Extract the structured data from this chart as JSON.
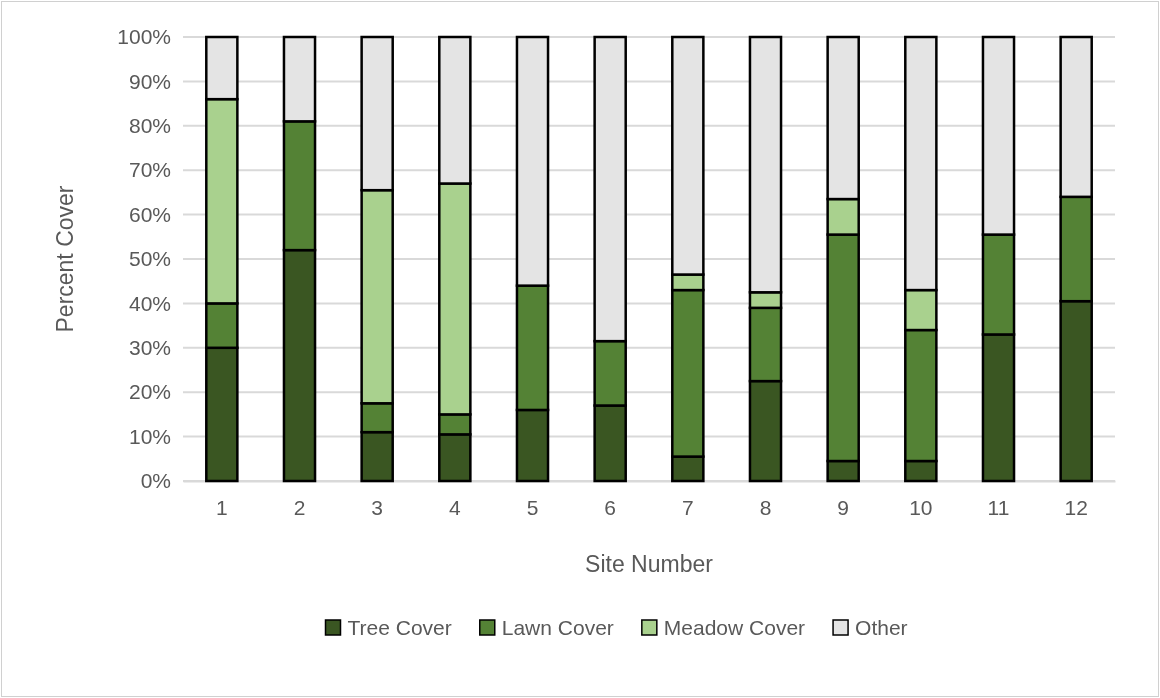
{
  "chart_data": {
    "type": "bar",
    "stacked": true,
    "xlabel": "Site Number",
    "ylabel": "Percent Cover",
    "categories": [
      "1",
      "2",
      "3",
      "4",
      "5",
      "6",
      "7",
      "8",
      "9",
      "10",
      "11",
      "12"
    ],
    "series": [
      {
        "name": "Tree Cover",
        "color": "#3a5622",
        "values": [
          30,
          52,
          11,
          10.5,
          16,
          17,
          5.5,
          22.5,
          4.5,
          4.5,
          33,
          40.5
        ]
      },
      {
        "name": "Lawn Cover",
        "color": "#548235",
        "values": [
          10,
          29,
          6.5,
          4.5,
          28,
          14.5,
          37.5,
          16.5,
          51,
          29.5,
          22.5,
          23.5
        ]
      },
      {
        "name": "Meadow Cover",
        "color": "#a9d18e",
        "values": [
          46,
          null,
          48,
          52,
          null,
          null,
          3.5,
          3.5,
          8,
          9,
          null,
          null
        ]
      },
      {
        "name": "Other",
        "color": "#e4e4e4",
        "values": [
          14,
          19,
          34.5,
          33,
          56,
          68.5,
          53.5,
          57.5,
          36.5,
          57,
          44.5,
          36
        ]
      }
    ],
    "ylim": [
      0,
      100
    ],
    "yticks": [
      {
        "value": 0,
        "label": "0%"
      },
      {
        "value": 10,
        "label": "10%"
      },
      {
        "value": 20,
        "label": "20%"
      },
      {
        "value": 30,
        "label": "30%"
      },
      {
        "value": 40,
        "label": "40%"
      },
      {
        "value": 50,
        "label": "50%"
      },
      {
        "value": 60,
        "label": "60%"
      },
      {
        "value": 70,
        "label": "70%"
      },
      {
        "value": 80,
        "label": "80%"
      },
      {
        "value": 90,
        "label": "90%"
      },
      {
        "value": 100,
        "label": "100%"
      }
    ],
    "grid": "y",
    "legend": "bottom"
  }
}
